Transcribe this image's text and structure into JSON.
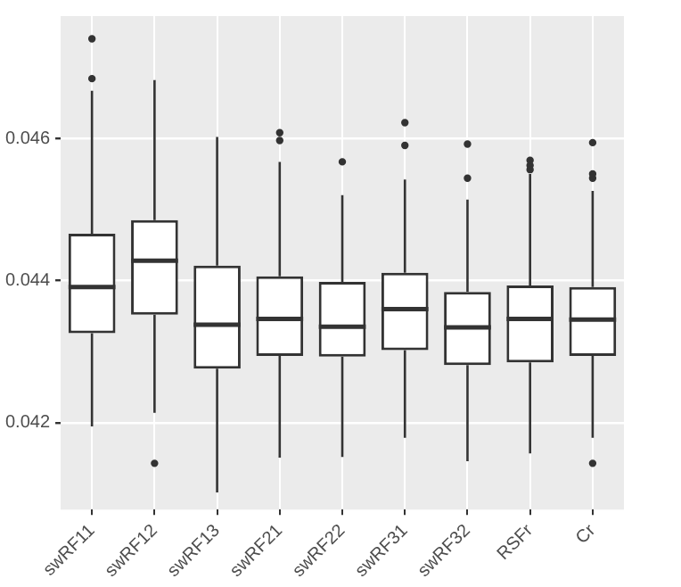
{
  "chart_data": {
    "type": "box",
    "categories": [
      "swRF11",
      "swRF12",
      "swRF13",
      "swRF21",
      "swRF22",
      "swRF31",
      "swRF32",
      "RSFr",
      "Cr"
    ],
    "boxes": [
      {
        "low": 0.04195,
        "q1": 0.04326,
        "median": 0.04391,
        "q3": 0.04466,
        "high": 0.04667,
        "outliers": [
          0.0474,
          0.04684
        ]
      },
      {
        "low": 0.04214,
        "q1": 0.04352,
        "median": 0.04428,
        "q3": 0.04485,
        "high": 0.04682,
        "outliers": [
          0.04143
        ]
      },
      {
        "low": 0.04102,
        "q1": 0.04276,
        "median": 0.04338,
        "q3": 0.04421,
        "high": 0.04602
      },
      {
        "low": 0.04151,
        "q1": 0.04294,
        "median": 0.04346,
        "q3": 0.04406,
        "high": 0.04567,
        "outliers": [
          0.04608,
          0.04597
        ]
      },
      {
        "low": 0.04152,
        "q1": 0.04293,
        "median": 0.04335,
        "q3": 0.04398,
        "high": 0.0452,
        "outliers": [
          0.04567
        ]
      },
      {
        "low": 0.04179,
        "q1": 0.04302,
        "median": 0.0436,
        "q3": 0.04411,
        "high": 0.04542,
        "outliers": [
          0.04622,
          0.0459
        ]
      },
      {
        "low": 0.04146,
        "q1": 0.04281,
        "median": 0.04334,
        "q3": 0.04384,
        "high": 0.04514,
        "outliers": [
          0.04592,
          0.04544
        ]
      },
      {
        "low": 0.04157,
        "q1": 0.04285,
        "median": 0.04346,
        "q3": 0.04393,
        "high": 0.0455,
        "outliers": [
          0.04569,
          0.04562,
          0.04556
        ]
      },
      {
        "low": 0.04179,
        "q1": 0.04294,
        "median": 0.04345,
        "q3": 0.04391,
        "high": 0.04526,
        "outliers": [
          0.04594,
          0.0455,
          0.04544,
          0.04143
        ]
      }
    ],
    "ylim": [
      0.04078,
      0.04772
    ],
    "yticks": [
      0.042,
      0.044,
      0.046
    ],
    "grid": true
  }
}
